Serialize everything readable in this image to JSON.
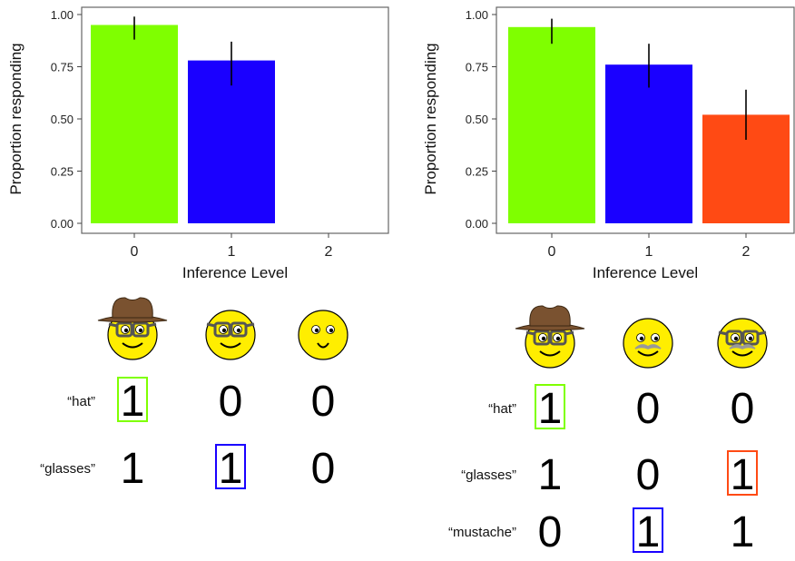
{
  "chart_data": [
    {
      "type": "bar",
      "categories": [
        "0",
        "1",
        "2"
      ],
      "values": [
        0.95,
        0.78,
        null
      ],
      "error_low": [
        0.88,
        0.66,
        null
      ],
      "error_high": [
        0.99,
        0.87,
        null
      ],
      "colors": [
        "#7fff00",
        "#1a00ff",
        "#ff4a14"
      ],
      "xlabel": "Inference Level",
      "ylabel": "Proportion responding",
      "ylim": [
        0,
        1
      ],
      "yticks": [
        "0.00",
        "0.25",
        "0.50",
        "0.75",
        "1.00"
      ],
      "grid": false
    },
    {
      "type": "bar",
      "categories": [
        "0",
        "1",
        "2"
      ],
      "values": [
        0.94,
        0.76,
        0.52
      ],
      "error_low": [
        0.86,
        0.65,
        0.4
      ],
      "error_high": [
        0.98,
        0.86,
        0.64
      ],
      "colors": [
        "#7fff00",
        "#1a00ff",
        "#ff4a14"
      ],
      "xlabel": "Inference Level",
      "ylabel": "Proportion responding",
      "ylim": [
        0,
        1
      ],
      "yticks": [
        "0.00",
        "0.25",
        "0.50",
        "0.75",
        "1.00"
      ],
      "grid": false
    }
  ],
  "panels": [
    {
      "faces": [
        {
          "hat": true,
          "glasses": true,
          "mustache": false
        },
        {
          "hat": false,
          "glasses": true,
          "mustache": false
        },
        {
          "hat": false,
          "glasses": false,
          "mustache": false
        }
      ],
      "rows": [
        {
          "label": "“hat”",
          "values": [
            "1",
            "0",
            "0"
          ],
          "box_index": 0,
          "box_color": "#7fff00"
        },
        {
          "label": "“glasses”",
          "values": [
            "1",
            "1",
            "0"
          ],
          "box_index": 1,
          "box_color": "#1a00ff"
        }
      ]
    },
    {
      "faces": [
        {
          "hat": true,
          "glasses": true,
          "mustache": false
        },
        {
          "hat": false,
          "glasses": false,
          "mustache": true
        },
        {
          "hat": false,
          "glasses": true,
          "mustache": true
        }
      ],
      "rows": [
        {
          "label": "“hat”",
          "values": [
            "1",
            "0",
            "0"
          ],
          "box_index": 0,
          "box_color": "#7fff00"
        },
        {
          "label": "“glasses”",
          "values": [
            "1",
            "0",
            "1"
          ],
          "box_index": 2,
          "box_color": "#ff4a14"
        },
        {
          "label": "“mustache”",
          "values": [
            "0",
            "1",
            "1"
          ],
          "box_index": 1,
          "box_color": "#1a00ff"
        }
      ]
    }
  ],
  "colors": {
    "face_fill": "#ffee00",
    "hat": "#7a5230",
    "glasses": "#555555",
    "mustache": "#999999"
  }
}
